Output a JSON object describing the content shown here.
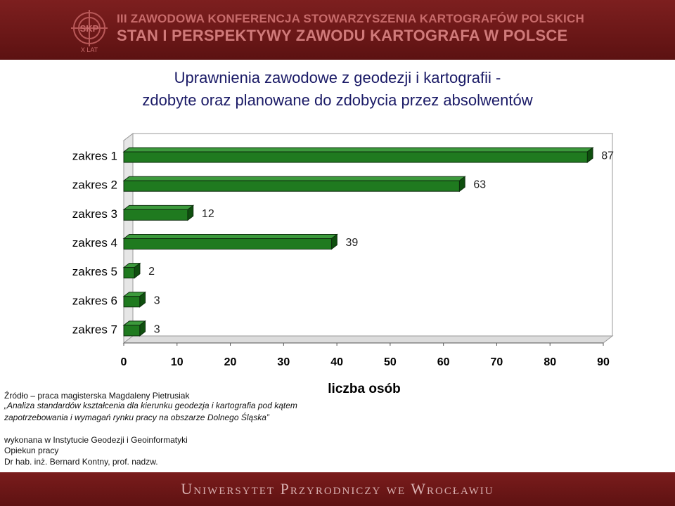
{
  "header": {
    "logo_text_top": "SKP",
    "logo_text_bottom": "X LAT",
    "line1": "III ZAWODOWA KONFERENCJA STOWARZYSZENIA KARTOGRAFÓW POLSKICH",
    "line2": "STAN I PERSPEKTYWY ZAWODU KARTOGRAFA W POLSCE",
    "color": "#6a1717"
  },
  "chart_data": {
    "type": "bar",
    "orientation": "horizontal",
    "title_lines": [
      "Uprawnienia zawodowe z geodezji i kartografii -",
      "zdobyte oraz planowane do zdobycia przez absolwentów"
    ],
    "categories": [
      "zakres 1",
      "zakres 2",
      "zakres 3",
      "zakres 4",
      "zakres 5",
      "zakres 6",
      "zakres 7"
    ],
    "values": [
      87,
      63,
      12,
      39,
      2,
      3,
      3
    ],
    "xlabel": "liczba osób",
    "ylabel": "",
    "xlim": [
      0,
      90
    ],
    "xticks": [
      0,
      10,
      20,
      30,
      40,
      50,
      60,
      70,
      80,
      90
    ],
    "grid": false,
    "legend": "none",
    "bar_color": "#1f7a1f",
    "style": "3d"
  },
  "source": {
    "line1": "Źródło – praca magisterska Magdaleny Pietrusiak",
    "line2": "„Analiza standardów kształcenia dla kierunku geodezja i kartografia pod kątem",
    "line3": "zapotrzebowania i wymagań rynku pracy na obszarze Dolnego Śląska”",
    "line4": "wykonana w Instytucie Geodezji i Geoinformatyki",
    "line5": "Opiekun pracy",
    "line6": "Dr hab. inż. Bernard Kontny, prof. nadzw."
  },
  "footer": {
    "text": "Uniwersytet Przyrodniczy we Wrocławiu"
  }
}
